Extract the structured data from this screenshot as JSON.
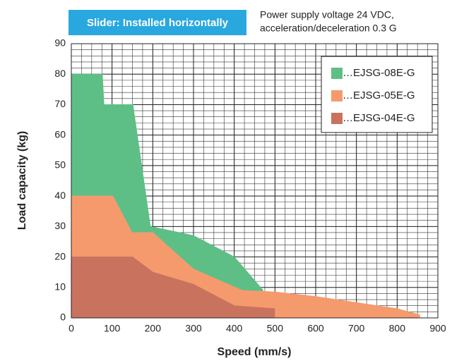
{
  "chart_data": {
    "type": "area",
    "title": "Slider: Installed horizontally",
    "subtitle": [
      "Power supply voltage 24 VDC,",
      "acceleration/deceleration 0.3 G"
    ],
    "x_label": "Speed (mm/s)",
    "y_label": "Load capacity (kg)",
    "xlim": [
      0,
      900
    ],
    "ylim": [
      0,
      90
    ],
    "xticks": [
      0,
      100,
      200,
      300,
      400,
      500,
      600,
      700,
      800,
      900
    ],
    "yticks": [
      0,
      10,
      20,
      30,
      40,
      50,
      60,
      70,
      80,
      90
    ],
    "grid": true,
    "minor_grid": {
      "x": 25,
      "y": 2
    },
    "legend": "upper right",
    "series": [
      {
        "name": "…EJSG-08E-G",
        "color": "#5dbf86",
        "x": [
          0,
          76,
          80,
          151,
          194,
          300,
          400,
          471
        ],
        "values": [
          80,
          80,
          70,
          70,
          30,
          27,
          20,
          9
        ]
      },
      {
        "name": "…EJSG-05E-G",
        "color": "#f59a6c",
        "x": [
          0,
          102,
          149,
          200,
          300,
          420,
          500,
          600,
          700,
          800,
          856
        ],
        "values": [
          40,
          40,
          28,
          28,
          16,
          9,
          8.5,
          7,
          5,
          3,
          1
        ]
      },
      {
        "name": "…EJSG-04E-G",
        "color": "#c9735f",
        "x": [
          0,
          150,
          200,
          300,
          400,
          500
        ],
        "values": [
          20,
          20,
          15,
          11,
          4,
          3
        ]
      }
    ]
  }
}
